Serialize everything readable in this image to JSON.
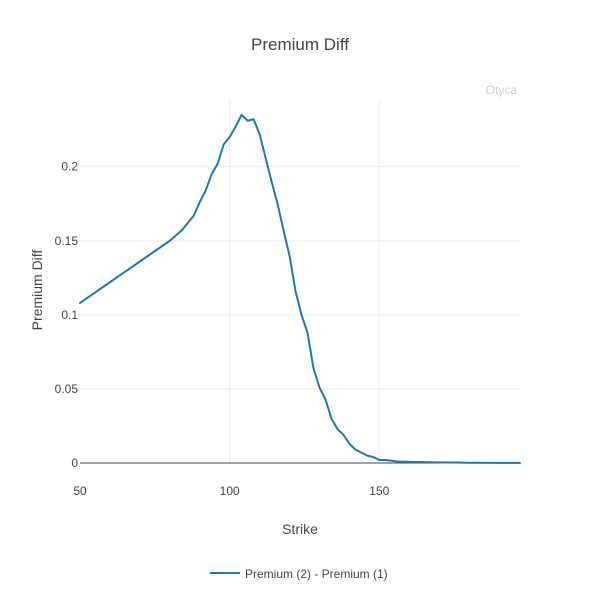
{
  "chart_data": {
    "type": "line",
    "title": "Premium Diff",
    "xlabel": "Strike",
    "ylabel": "Premium Diff",
    "watermark": "Otyca",
    "xlim": [
      50,
      197
    ],
    "ylim": [
      0,
      0.245
    ],
    "xticks": [
      50,
      100,
      150
    ],
    "xtick_labels": [
      "50",
      "100",
      "150"
    ],
    "yticks": [
      0,
      0.05,
      0.1,
      0.15,
      0.2
    ],
    "ytick_labels": [
      "0",
      "0.05",
      "0.1",
      "0.15",
      "0.2"
    ],
    "grid": true,
    "legend_position": "bottom-center",
    "colors": {
      "series": "#1f77b4",
      "grid": "#eeeeee",
      "zeroline": "#444444"
    },
    "series": [
      {
        "name": "Premium (2) - Premium (1)",
        "x": [
          50,
          60,
          70,
          80,
          84,
          88,
          90,
          92,
          94,
          96,
          98,
          100,
          102,
          104,
          106,
          108,
          110,
          112,
          114,
          116,
          118,
          120,
          122,
          124,
          126,
          128,
          130,
          132,
          134,
          136,
          138,
          140,
          142,
          144,
          146,
          148,
          150,
          152,
          154,
          156,
          160,
          165,
          170,
          175,
          180,
          190,
          197
        ],
        "y": [
          0.108,
          0.122,
          0.136,
          0.15,
          0.157,
          0.167,
          0.176,
          0.184,
          0.195,
          0.202,
          0.215,
          0.22,
          0.227,
          0.235,
          0.231,
          0.232,
          0.222,
          0.206,
          0.19,
          0.175,
          0.157,
          0.14,
          0.116,
          0.1,
          0.088,
          0.064,
          0.051,
          0.043,
          0.03,
          0.023,
          0.019,
          0.013,
          0.009,
          0.007,
          0.005,
          0.004,
          0.002,
          0.002,
          0.0015,
          0.001,
          0.0008,
          0.0006,
          0.0004,
          0.0003,
          0.0002,
          0.0001,
          0.0001
        ]
      }
    ]
  }
}
